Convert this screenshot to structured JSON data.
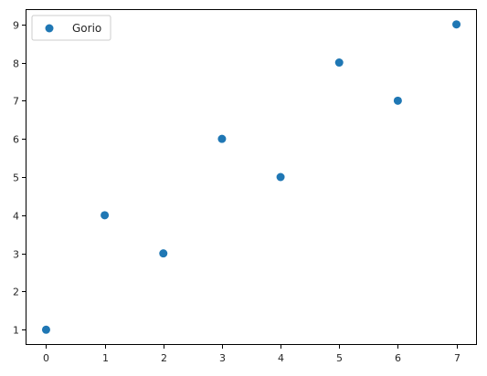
{
  "chart_data": {
    "type": "scatter",
    "title": "",
    "xlabel": "",
    "ylabel": "",
    "xlim": [
      -0.35,
      7.35
    ],
    "ylim": [
      0.6,
      9.4
    ],
    "x_ticks": [
      0,
      1,
      2,
      3,
      4,
      5,
      6,
      7
    ],
    "y_ticks": [
      1,
      2,
      3,
      4,
      5,
      6,
      7,
      8,
      9
    ],
    "grid": false,
    "legend_position": "top-left",
    "series": [
      {
        "name": "Gorio",
        "color": "#1f77b4",
        "marker": "circle",
        "points": [
          {
            "x": 0,
            "y": 1
          },
          {
            "x": 1,
            "y": 4
          },
          {
            "x": 2,
            "y": 3
          },
          {
            "x": 3,
            "y": 6
          },
          {
            "x": 4,
            "y": 5
          },
          {
            "x": 5,
            "y": 8
          },
          {
            "x": 6,
            "y": 7
          },
          {
            "x": 7,
            "y": 9
          }
        ]
      }
    ]
  }
}
